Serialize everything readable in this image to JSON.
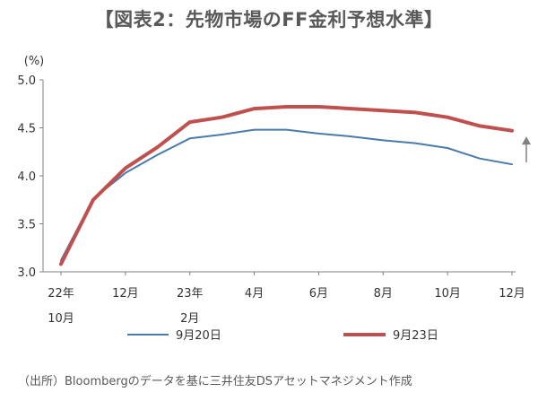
{
  "title": "【図表2：先物市場のFF金利予想水準】",
  "source_note": "（出所）Bloombergのデータを基に三井住友DSアセットマネジメント作成",
  "chart_data": {
    "type": "line",
    "unit_label": "(%)",
    "ylim": [
      3.0,
      5.0
    ],
    "y_ticks": [
      "3.0",
      "3.5",
      "4.0",
      "4.5",
      "5.0"
    ],
    "grid": false,
    "legend_position": "bottom",
    "x_ticks": [
      {
        "line1": "22年",
        "line2": "10月"
      },
      {
        "line1": "12月",
        "line2": ""
      },
      {
        "line1": "23年",
        "line2": "2月"
      },
      {
        "line1": "4月",
        "line2": ""
      },
      {
        "line1": "6月",
        "line2": ""
      },
      {
        "line1": "8月",
        "line2": ""
      },
      {
        "line1": "10月",
        "line2": ""
      },
      {
        "line1": "12月",
        "line2": ""
      }
    ],
    "x": [
      "2022-10",
      "2022-11",
      "2022-12",
      "2023-01",
      "2023-02",
      "2023-03",
      "2023-04",
      "2023-05",
      "2023-06",
      "2023-07",
      "2023-08",
      "2023-09",
      "2023-10",
      "2023-11",
      "2023-12"
    ],
    "series": [
      {
        "name": "9月20日",
        "color": "#4a7bab",
        "values": [
          3.12,
          3.76,
          4.03,
          4.22,
          4.39,
          4.43,
          4.48,
          4.48,
          4.44,
          4.41,
          4.37,
          4.34,
          4.29,
          4.18,
          4.12
        ]
      },
      {
        "name": "9月23日",
        "color": "#c0504d",
        "values": [
          3.08,
          3.75,
          4.08,
          4.3,
          4.56,
          4.61,
          4.7,
          4.72,
          4.72,
          4.7,
          4.68,
          4.66,
          4.61,
          4.52,
          4.47
        ]
      }
    ],
    "annotation_arrow": {
      "color": "#808080",
      "from": 4.14,
      "to": 4.41
    }
  }
}
